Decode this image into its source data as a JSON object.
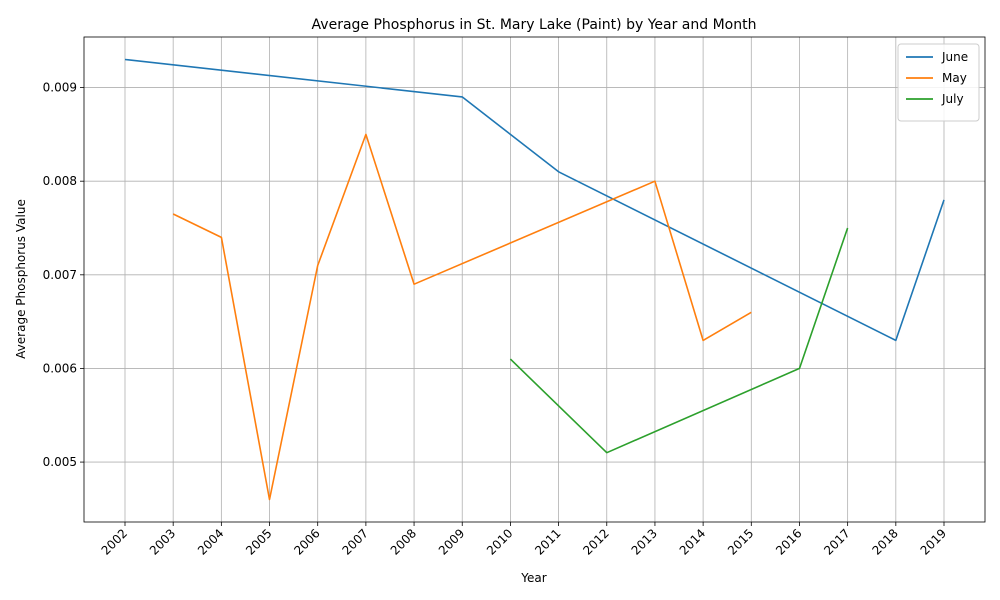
{
  "chart_data": {
    "type": "line",
    "title": "Average Phosphorus in St. Mary Lake (Paint) by Year and Month",
    "xlabel": "Year",
    "ylabel": "Average Phosphorus Value",
    "x": [
      "2002",
      "2003",
      "2004",
      "2005",
      "2006",
      "2007",
      "2008",
      "2009",
      "2010",
      "2011",
      "2012",
      "2013",
      "2014",
      "2015",
      "2016",
      "2017",
      "2018",
      "2019"
    ],
    "ylim": [
      0.00436,
      0.00954
    ],
    "yticks": [
      "0.005",
      "0.006",
      "0.007",
      "0.008",
      "0.009"
    ],
    "grid": true,
    "legend_position": "top-right",
    "series": [
      {
        "name": "June",
        "color": "#1f77b4",
        "points": [
          {
            "x": "2002",
            "y": 0.0093
          },
          {
            "x": "2009",
            "y": 0.0089
          },
          {
            "x": "2011",
            "y": 0.0081
          },
          {
            "x": "2018",
            "y": 0.0063
          },
          {
            "x": "2019",
            "y": 0.0078
          }
        ]
      },
      {
        "name": "May",
        "color": "#ff7f0e",
        "points": [
          {
            "x": "2003",
            "y": 0.00765
          },
          {
            "x": "2004",
            "y": 0.0074
          },
          {
            "x": "2005",
            "y": 0.0046
          },
          {
            "x": "2006",
            "y": 0.0071
          },
          {
            "x": "2007",
            "y": 0.0085
          },
          {
            "x": "2008",
            "y": 0.0069
          },
          {
            "x": "2013",
            "y": 0.008
          },
          {
            "x": "2014",
            "y": 0.0063
          },
          {
            "x": "2015",
            "y": 0.0066
          }
        ]
      },
      {
        "name": "July",
        "color": "#2ca02c",
        "points": [
          {
            "x": "2010",
            "y": 0.0061
          },
          {
            "x": "2012",
            "y": 0.0051
          },
          {
            "x": "2016",
            "y": 0.006
          },
          {
            "x": "2017",
            "y": 0.0075
          }
        ]
      }
    ]
  }
}
